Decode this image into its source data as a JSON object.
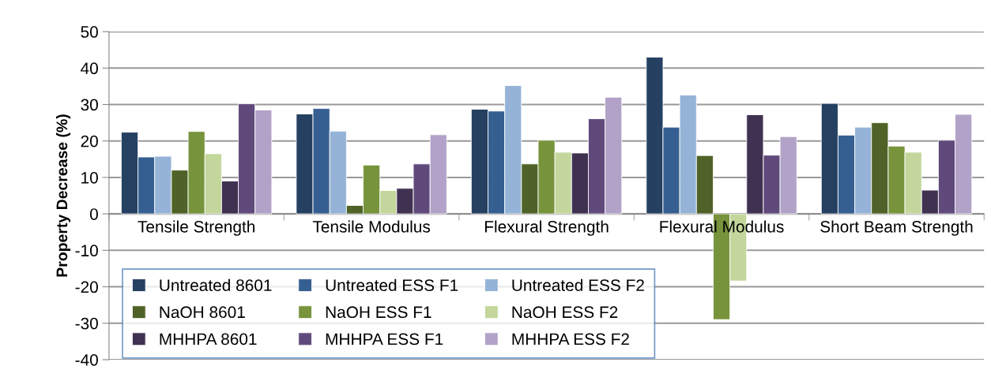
{
  "chart_data": {
    "type": "bar",
    "ylabel": "Property Decrease (%)",
    "categories": [
      "Tensile Strength",
      "Tensile Modulus",
      "Flexural Strength",
      "Flexural Modulus",
      "Short Beam Strength"
    ],
    "series": [
      {
        "name": "Untreated 8601",
        "color": "#254061",
        "values": [
          22.4,
          27.4,
          28.7,
          43,
          30.3
        ]
      },
      {
        "name": "Untreated ESS F1",
        "color": "#365f91",
        "values": [
          15.6,
          28.9,
          28.2,
          23.8,
          21.6
        ]
      },
      {
        "name": "Untreated ESS F2",
        "color": "#95b3d7",
        "values": [
          15.8,
          22.7,
          35.2,
          32.6,
          23.8
        ]
      },
      {
        "name": "NaOH 8601",
        "color": "#4f6228",
        "values": [
          12,
          2.3,
          13.7,
          16,
          25
        ]
      },
      {
        "name": "NaOH ESS F1",
        "color": "#77933c",
        "values": [
          22.6,
          13.4,
          20.2,
          -29,
          18.6
        ]
      },
      {
        "name": "NaOH ESS F2",
        "color": "#c3d69b",
        "values": [
          16.5,
          6.4,
          16.9,
          -18.4,
          16.9
        ]
      },
      {
        "name": "MHHPA 8601",
        "color": "#403151",
        "values": [
          9,
          7,
          16.7,
          27.2,
          6.5
        ]
      },
      {
        "name": "MHHPA ESS F1",
        "color": "#604a7b",
        "values": [
          30.2,
          13.7,
          26.1,
          16.1,
          20.2
        ]
      },
      {
        "name": "MHHPA ESS F2",
        "color": "#b2a2c7",
        "values": [
          28.5,
          21.7,
          32,
          21.2,
          27.3
        ]
      }
    ],
    "ylim": [
      -40,
      50
    ],
    "yticks": [
      -40,
      -30,
      -20,
      -10,
      0,
      10,
      20,
      30,
      40,
      50
    ],
    "grid": "y",
    "legend": "bottom left"
  }
}
